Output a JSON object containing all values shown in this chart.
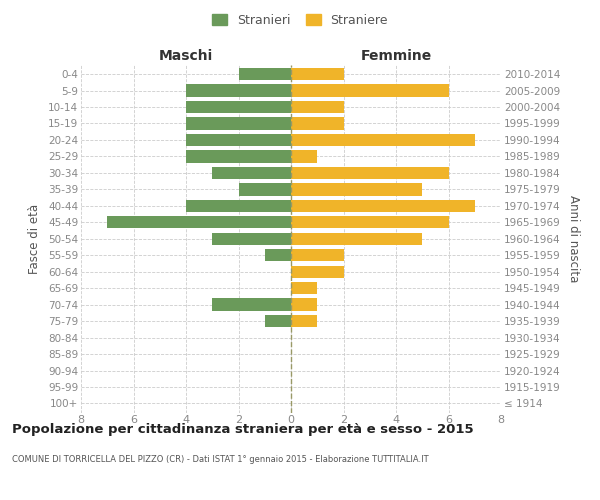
{
  "age_groups": [
    "100+",
    "95-99",
    "90-94",
    "85-89",
    "80-84",
    "75-79",
    "70-74",
    "65-69",
    "60-64",
    "55-59",
    "50-54",
    "45-49",
    "40-44",
    "35-39",
    "30-34",
    "25-29",
    "20-24",
    "15-19",
    "10-14",
    "5-9",
    "0-4"
  ],
  "birth_years": [
    "≤ 1914",
    "1915-1919",
    "1920-1924",
    "1925-1929",
    "1930-1934",
    "1935-1939",
    "1940-1944",
    "1945-1949",
    "1950-1954",
    "1955-1959",
    "1960-1964",
    "1965-1969",
    "1970-1974",
    "1975-1979",
    "1980-1984",
    "1985-1989",
    "1990-1994",
    "1995-1999",
    "2000-2004",
    "2005-2009",
    "2010-2014"
  ],
  "males": [
    0,
    0,
    0,
    0,
    0,
    1,
    3,
    0,
    0,
    1,
    3,
    7,
    4,
    2,
    3,
    4,
    4,
    4,
    4,
    4,
    2
  ],
  "females": [
    0,
    0,
    0,
    0,
    0,
    1,
    1,
    1,
    2,
    2,
    5,
    6,
    7,
    5,
    6,
    1,
    7,
    2,
    2,
    6,
    2
  ],
  "male_color": "#6a9a5a",
  "female_color": "#f0b429",
  "grid_color": "#cccccc",
  "title": "Popolazione per cittadinanza straniera per età e sesso - 2015",
  "subtitle": "COMUNE DI TORRICELLA DEL PIZZO (CR) - Dati ISTAT 1° gennaio 2015 - Elaborazione TUTTITALIA.IT",
  "label_maschi": "Maschi",
  "label_femmine": "Femmine",
  "ylabel_left": "Fasce di età",
  "ylabel_right": "Anni di nascita",
  "xlim": 8,
  "legend_stranieri": "Stranieri",
  "legend_straniere": "Straniere",
  "background_color": "#ffffff",
  "axis_label_color": "#555555",
  "tick_color": "#888888",
  "bar_height": 0.75,
  "dashed_line_color": "#999966"
}
